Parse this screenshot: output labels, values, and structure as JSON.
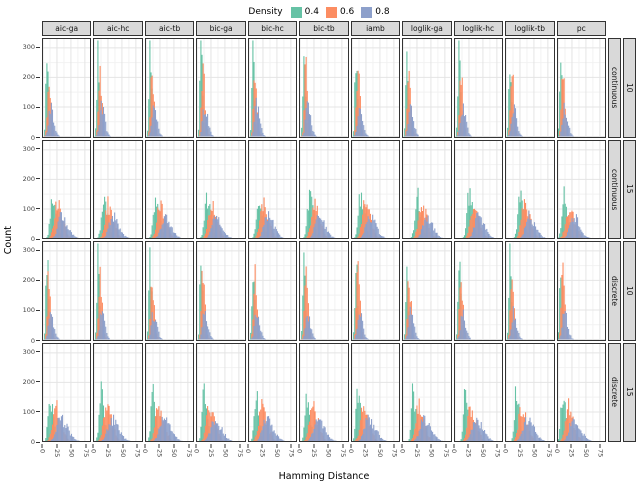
{
  "chart_data": {
    "type": "histogram-grid",
    "xlabel": "Hamming Distance",
    "ylabel": "Count",
    "x_ticks": [
      0,
      25,
      50,
      75
    ],
    "y_ticks": [
      0,
      100,
      200,
      300
    ],
    "xlim": [
      0,
      85
    ],
    "ylim": [
      0,
      330
    ],
    "bin_width": 2,
    "grid": true,
    "legend": {
      "title": "Density",
      "position": "top",
      "entries": [
        {
          "label": "0.4",
          "color": "#66C2A5"
        },
        {
          "label": "0.6",
          "color": "#FC8D62"
        },
        {
          "label": "0.8",
          "color": "#8DA0CB"
        }
      ]
    },
    "colors": {
      "strip_fill": "#d9d9d9",
      "panel_border": "#333333",
      "grid_major": "#e4e4e4",
      "grid_minor": "#f2f2f2",
      "tick_text": "#444444"
    },
    "facet_columns": [
      "aic-ga",
      "aic-hc",
      "aic-tb",
      "bic-ga",
      "bic-hc",
      "bic-tb",
      "iamb",
      "loglik-ga",
      "loglik-hc",
      "loglik-tb",
      "pc"
    ],
    "facet_rows": [
      {
        "type": "continuous",
        "nodes": "10",
        "series": [
          {
            "name": "0.4",
            "center": 7,
            "sd": 2.4,
            "peak": 310
          },
          {
            "name": "0.6",
            "center": 10,
            "sd": 3.0,
            "peak": 235
          },
          {
            "name": "0.8",
            "center": 13,
            "sd": 4.2,
            "peak": 110
          }
        ],
        "col_shift": [
          0,
          0,
          0,
          0,
          0,
          0,
          0,
          0,
          0,
          0,
          -2
        ]
      },
      {
        "type": "continuous",
        "nodes": "15",
        "series": [
          {
            "name": "0.4",
            "center": 17,
            "sd": 5.0,
            "peak": 150
          },
          {
            "name": "0.6",
            "center": 25,
            "sd": 7.0,
            "peak": 120
          },
          {
            "name": "0.8",
            "center": 33,
            "sd": 8.0,
            "peak": 80
          }
        ],
        "col_shift": [
          0,
          0,
          0,
          0,
          0,
          0,
          -2,
          8,
          8,
          8,
          -6
        ]
      },
      {
        "type": "discrete",
        "nodes": "10",
        "series": [
          {
            "name": "0.4",
            "center": 7,
            "sd": 2.4,
            "peak": 290
          },
          {
            "name": "0.6",
            "center": 10,
            "sd": 3.0,
            "peak": 230
          },
          {
            "name": "0.8",
            "center": 13,
            "sd": 4.2,
            "peak": 95
          }
        ],
        "col_shift": [
          0,
          0,
          0,
          0,
          0,
          0,
          0,
          0,
          0,
          0,
          -2
        ]
      },
      {
        "type": "discrete",
        "nodes": "15",
        "series": [
          {
            "name": "0.4",
            "center": 12,
            "sd": 4.0,
            "peak": 175
          },
          {
            "name": "0.6",
            "center": 22,
            "sd": 7.0,
            "peak": 125
          },
          {
            "name": "0.8",
            "center": 31,
            "sd": 9.0,
            "peak": 80
          }
        ],
        "col_shift": [
          0,
          0,
          0,
          0,
          0,
          0,
          -2,
          6,
          6,
          6,
          -4
        ]
      }
    ]
  }
}
